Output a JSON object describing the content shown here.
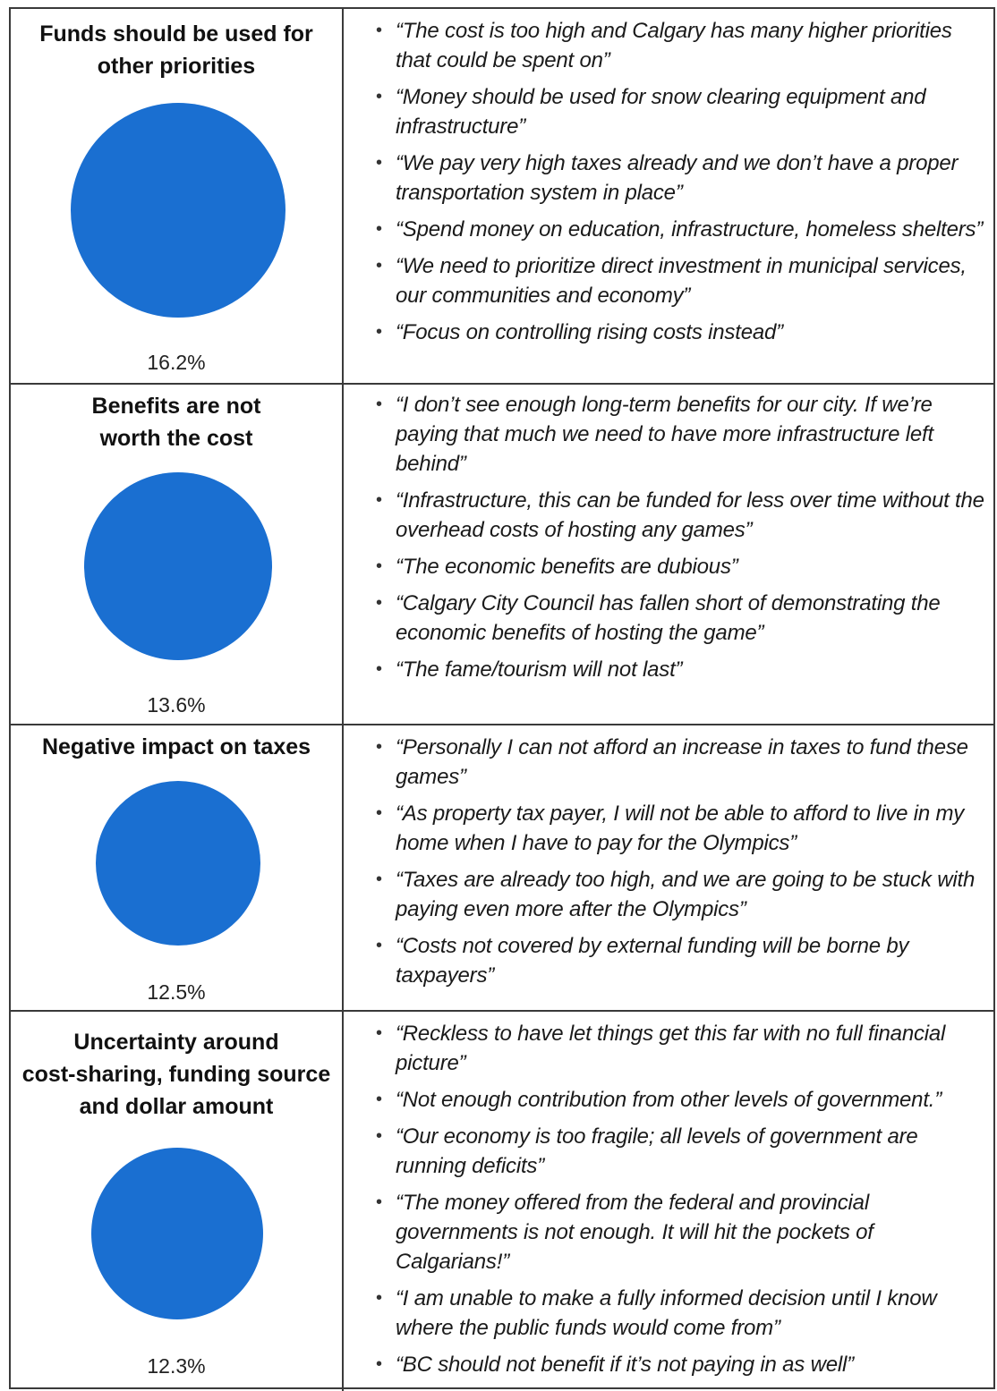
{
  "rows": [
    {
      "title_lines": [
        "Funds should be used for",
        "other priorities"
      ],
      "percent": "16.2%",
      "quotes": [
        "“The cost is too high and Calgary has many higher priorities that could be spent on”",
        "“Money should be used for snow clearing equipment and infrastructure”",
        "“We pay very high taxes already and we don’t have a proper transportation system in place”",
        "“Spend money on education, infrastructure, homeless shelters”",
        "“We need to prioritize direct investment in municipal services, our communities and economy”",
        "“Focus on controlling rising costs instead”"
      ]
    },
    {
      "title_lines": [
        "Benefits are not",
        "worth the cost"
      ],
      "percent": "13.6%",
      "quotes": [
        "“I don’t see enough long-term benefits for our city. If we’re paying that much we need to have more infrastructure left behind”",
        "“Infrastructure, this can be funded for less over time without the overhead costs of hosting any games”",
        "“The economic benefits are dubious”",
        "“Calgary City Council has fallen short of demonstrating the economic benefits of hosting the game”",
        "“The fame/tourism will not last”"
      ]
    },
    {
      "title_lines": [
        "Negative impact on taxes"
      ],
      "percent": "12.5%",
      "quotes": [
        "“Personally I can not afford an increase in taxes to fund these games”",
        "“As property tax payer, I will not be able to afford to live in my home when I have to pay for the Olympics”",
        "“Taxes are already too high, and we are going to be stuck with paying even more after the Olympics”",
        "“Costs not covered by external funding will be borne by taxpayers”"
      ]
    },
    {
      "title_lines": [
        "Uncertainty around",
        "cost-sharing, funding source",
        "and dollar amount"
      ],
      "percent": "12.3%",
      "quotes": [
        "“Reckless to have let things get this far with no full financial picture”",
        "“Not enough contribution from other levels of government.”",
        "“Our economy is too fragile; all levels of government are running deficits”",
        "“The money offered from the federal and provincial governments is not enough. It will hit the pockets of Calgarians!”",
        "“I am unable to make a fully informed decision until I know where the public funds would come from”",
        "“BC should not benefit if it’s not paying in as well”"
      ]
    }
  ],
  "pie_color": "#1a6fd1"
}
